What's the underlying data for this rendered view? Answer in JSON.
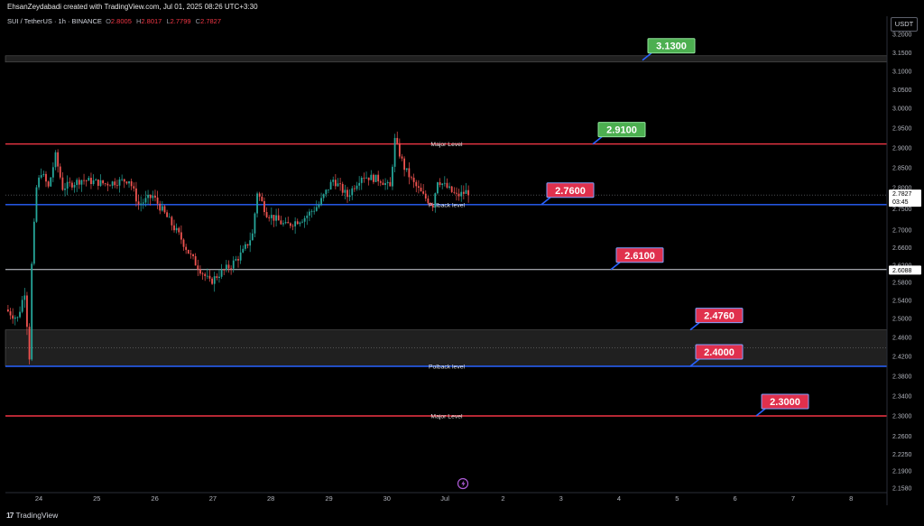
{
  "header": {
    "caption": "EhsanZeydabadi created with TradingView.com, Jul 01, 2025 08:26 UTC+3:30",
    "symbol": "SUI / TetherUS · 1h · BINANCE",
    "ohlc": {
      "o_label": "O",
      "o": "2.8005",
      "h_label": "H",
      "h": "2.8017",
      "l_label": "L",
      "l": "2.7799",
      "c_label": "C",
      "c": "2.7827"
    },
    "currency": "USDT"
  },
  "footer": {
    "logo_text": "TradingView"
  },
  "chart_data": {
    "type": "candlestick",
    "ylim": [
      2.15,
      3.2
    ],
    "x_ticks": [
      "24",
      "25",
      "26",
      "27",
      "28",
      "29",
      "30",
      "Jul",
      "2",
      "3",
      "4",
      "5",
      "6",
      "7",
      "8"
    ],
    "y_ticks": [
      "3.2000",
      "3.1500",
      "3.1000",
      "3.0500",
      "3.0000",
      "2.9500",
      "2.9000",
      "2.8500",
      "2.8000",
      "2.7500",
      "2.7000",
      "2.6600",
      "2.6200",
      "2.5800",
      "2.5400",
      "2.5000",
      "2.4600",
      "2.4200",
      "2.3800",
      "2.3400",
      "2.3000",
      "2.2600",
      "2.2250",
      "2.1900",
      "2.1580"
    ],
    "last_price": {
      "value": 2.7827,
      "label": "2.7827",
      "countdown": "03:45"
    },
    "marked_price": {
      "value": 2.6088,
      "label": "2.6088"
    },
    "levels": [
      {
        "value": 3.13,
        "label": "3.1300",
        "kind": "green",
        "zone": [
          3.125,
          3.142
        ],
        "line": "none",
        "text": ""
      },
      {
        "value": 2.91,
        "label": "2.9100",
        "kind": "green",
        "line": "red",
        "text": "Major Level"
      },
      {
        "value": 2.76,
        "label": "2.7600",
        "kind": "red",
        "line": "blue",
        "text": "Polback level"
      },
      {
        "value": 2.61,
        "label": "2.6100",
        "kind": "red",
        "line": "white",
        "text": ""
      },
      {
        "value": 2.476,
        "label": "2.4760",
        "kind": "red",
        "zone": [
          2.4,
          2.476
        ],
        "line": "none",
        "text": ""
      },
      {
        "value": 2.4,
        "label": "2.4000",
        "kind": "red",
        "line": "blue",
        "text": "Polback level"
      },
      {
        "value": 2.3,
        "label": "2.3000",
        "kind": "red",
        "line": "red",
        "text": "Major Level"
      }
    ],
    "colors": {
      "up": "#26a69a",
      "down": "#ef5350",
      "red_line": "#f23645",
      "blue_line": "#2962ff",
      "green_box": "#4caf50",
      "red_box": "#e0304d"
    }
  }
}
